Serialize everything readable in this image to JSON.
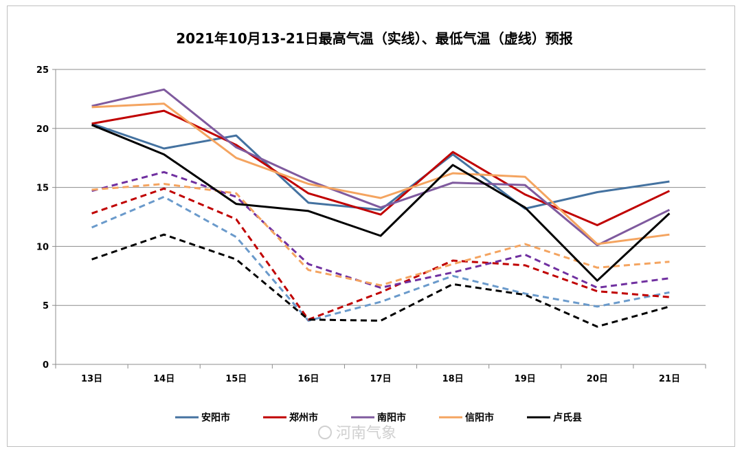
{
  "chart_data": {
    "type": "line",
    "title": "2021年10月13-21日最高气温（实线）、最低气温（虚线）预报",
    "categories": [
      "13日",
      "14日",
      "15日",
      "16日",
      "17日",
      "18日",
      "19日",
      "20日",
      "21日"
    ],
    "ylim": [
      0,
      25
    ],
    "yticks": [
      0,
      5,
      10,
      15,
      20,
      25
    ],
    "grid": true,
    "legend_position": "bottom",
    "series": [
      {
        "name": "安阳市",
        "color": "#4472a0",
        "kind": "max",
        "values": [
          20.4,
          18.3,
          19.4,
          13.7,
          13.1,
          17.8,
          13.2,
          14.6,
          15.5
        ]
      },
      {
        "name": "郑州市",
        "color": "#c00000",
        "kind": "max",
        "values": [
          20.4,
          21.5,
          18.6,
          14.5,
          12.7,
          18.0,
          14.4,
          11.8,
          14.7
        ]
      },
      {
        "name": "南阳市",
        "color": "#7f5a9e",
        "kind": "max",
        "values": [
          21.9,
          23.3,
          18.4,
          15.6,
          13.3,
          15.4,
          15.2,
          10.1,
          13.1
        ]
      },
      {
        "name": "信阳市",
        "color": "#f4a460",
        "kind": "max",
        "values": [
          21.8,
          22.1,
          17.5,
          15.3,
          14.1,
          16.2,
          15.9,
          10.2,
          11.0
        ]
      },
      {
        "name": "卢氏县",
        "color": "#000000",
        "kind": "max",
        "values": [
          20.3,
          17.8,
          13.6,
          13.0,
          10.9,
          16.9,
          13.3,
          7.1,
          12.8
        ]
      },
      {
        "name": "安阳市",
        "color": "#6a9acb",
        "kind": "min",
        "values": [
          11.6,
          14.2,
          10.8,
          3.7,
          5.3,
          7.5,
          6.0,
          4.9,
          6.1
        ]
      },
      {
        "name": "郑州市",
        "color": "#c00000",
        "kind": "min",
        "values": [
          12.8,
          14.9,
          12.3,
          3.8,
          6.1,
          8.8,
          8.4,
          6.2,
          5.7
        ]
      },
      {
        "name": "南阳市",
        "color": "#7030a0",
        "kind": "min",
        "values": [
          14.7,
          16.3,
          14.2,
          8.5,
          6.5,
          7.8,
          9.3,
          6.5,
          7.3
        ]
      },
      {
        "name": "信阳市",
        "color": "#f4a460",
        "kind": "min",
        "values": [
          14.8,
          15.3,
          14.5,
          8.0,
          6.7,
          8.5,
          10.2,
          8.2,
          8.7
        ]
      },
      {
        "name": "卢氏县",
        "color": "#000000",
        "kind": "min",
        "values": [
          8.9,
          11.0,
          8.9,
          3.8,
          3.7,
          6.8,
          5.9,
          3.2,
          4.9
        ]
      }
    ],
    "legend": [
      {
        "name": "安阳市",
        "color": "#4472a0"
      },
      {
        "name": "郑州市",
        "color": "#c00000"
      },
      {
        "name": "南阳市",
        "color": "#7f5a9e"
      },
      {
        "name": "信阳市",
        "color": "#f4a460"
      },
      {
        "name": "卢氏县",
        "color": "#000000"
      }
    ]
  },
  "watermark": "河南气象"
}
